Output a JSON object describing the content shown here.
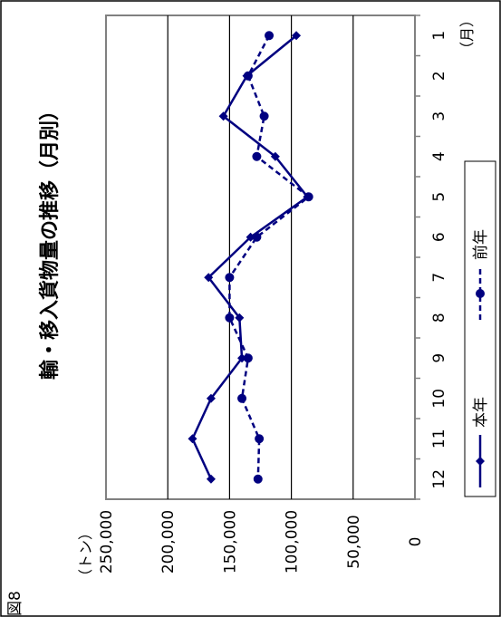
{
  "page": {
    "corner_text": "図8"
  },
  "chart_data": {
    "type": "line",
    "title": "輸・移入貨物量の推移（月別）",
    "xlabel": "（月）",
    "ylabel": "（トン）",
    "categories": [
      "1",
      "2",
      "3",
      "4",
      "5",
      "6",
      "7",
      "8",
      "9",
      "10",
      "11",
      "12"
    ],
    "ylim": [
      0,
      250000
    ],
    "yticks": [
      0,
      50000,
      100000,
      150000,
      200000,
      250000
    ],
    "ytick_labels": [
      "0",
      "50,000",
      "100,000",
      "150,000",
      "200,000",
      "250,000"
    ],
    "grid": true,
    "legend_position": "right",
    "orientation": "rotated-90-clockwise",
    "series": [
      {
        "name": "本年",
        "style": "solid",
        "marker": "diamond",
        "color": "#000080",
        "values": [
          96000,
          136000,
          155000,
          113000,
          87000,
          133000,
          167000,
          142000,
          140000,
          165000,
          180000,
          165000
        ]
      },
      {
        "name": "前年",
        "style": "dashed",
        "marker": "circle",
        "color": "#000080",
        "values": [
          118000,
          135000,
          122000,
          128000,
          86000,
          128000,
          150000,
          150000,
          135000,
          140000,
          126000,
          127000
        ]
      }
    ]
  }
}
